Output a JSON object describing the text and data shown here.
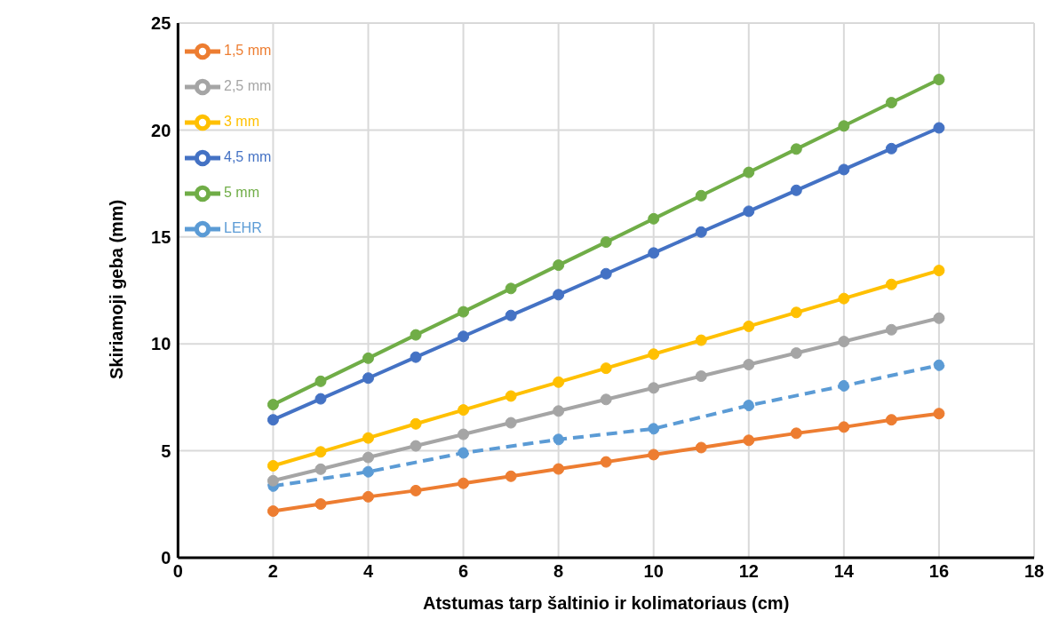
{
  "chart_data": {
    "type": "line",
    "xlabel": "Atstumas tarp šaltinio ir kolimatoriaus (cm)",
    "ylabel": "Skiriamoji geba (mm)",
    "xlim": [
      0,
      18
    ],
    "xticks": [
      0,
      2,
      4,
      6,
      8,
      10,
      12,
      14,
      16,
      18
    ],
    "ylim": [
      0,
      25
    ],
    "yticks": [
      0,
      5,
      10,
      15,
      20,
      25
    ],
    "grid": true,
    "legend": "top left",
    "marker": "circle",
    "line_style": "solid",
    "series": [
      {
        "name": "LEHR",
        "color": "#5b9bd5",
        "line_style": "dashed",
        "x": [
          2,
          4,
          6,
          8,
          10,
          12,
          14,
          16
        ],
        "values": [
          3.35,
          4.02,
          4.9,
          5.53,
          6.03,
          7.12,
          8.04,
          9.0
        ]
      },
      {
        "name": "1,5 mm",
        "color": "#ed7d31",
        "x": [
          2,
          3,
          4,
          5,
          6,
          7,
          8,
          9,
          10,
          11,
          12,
          13,
          14,
          15,
          16
        ],
        "values": [
          2.18,
          2.51,
          2.85,
          3.14,
          3.48,
          3.81,
          4.15,
          4.48,
          4.82,
          5.15,
          5.49,
          5.82,
          6.11,
          6.45,
          6.74
        ]
      },
      {
        "name": "2,5 mm",
        "color": "#a5a5a5",
        "x": [
          2,
          3,
          4,
          5,
          6,
          7,
          8,
          9,
          10,
          11,
          12,
          13,
          14,
          15,
          16
        ],
        "values": [
          3.6,
          4.14,
          4.69,
          5.23,
          5.77,
          6.31,
          6.86,
          7.4,
          7.94,
          8.49,
          9.03,
          9.57,
          10.11,
          10.66,
          11.2
        ]
      },
      {
        "name": "3 mm",
        "color": "#ffc000",
        "x": [
          2,
          3,
          4,
          5,
          6,
          7,
          8,
          9,
          10,
          11,
          12,
          13,
          14,
          15,
          16
        ],
        "values": [
          4.3,
          4.95,
          5.6,
          6.26,
          6.91,
          7.56,
          8.21,
          8.86,
          9.52,
          10.17,
          10.82,
          11.47,
          12.12,
          12.78,
          13.43
        ]
      },
      {
        "name": "4,5 mm",
        "color": "#4472c4",
        "x": [
          2,
          3,
          4,
          5,
          6,
          7,
          8,
          9,
          10,
          11,
          12,
          13,
          14,
          15,
          16
        ],
        "values": [
          6.45,
          7.43,
          8.4,
          9.38,
          10.35,
          11.33,
          12.3,
          13.28,
          14.25,
          15.23,
          16.2,
          17.18,
          18.15,
          19.13,
          20.1
        ]
      },
      {
        "name": "5 mm",
        "color": "#70ad47",
        "x": [
          2,
          3,
          4,
          5,
          6,
          7,
          8,
          9,
          10,
          11,
          12,
          13,
          14,
          15,
          16
        ],
        "values": [
          7.16,
          8.25,
          9.33,
          10.42,
          11.5,
          12.59,
          13.68,
          14.76,
          15.85,
          16.93,
          18.02,
          19.11,
          20.19,
          21.28,
          22.36
        ]
      }
    ]
  }
}
